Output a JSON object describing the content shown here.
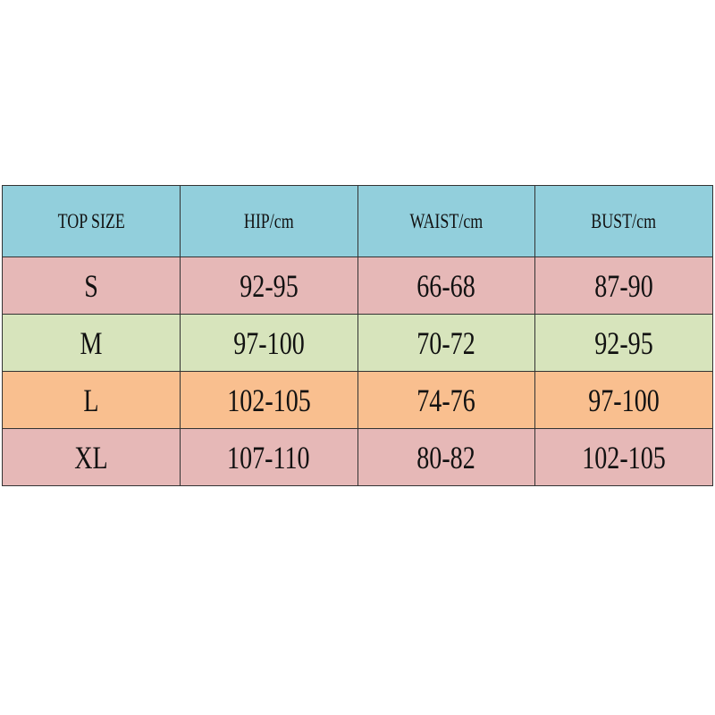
{
  "table": {
    "header": [
      "TOP SIZE",
      "HIP/cm",
      "WAIST/cm",
      "BUST/cm"
    ],
    "rows": [
      [
        "S",
        "92-95",
        "66-68",
        "87-90"
      ],
      [
        "M",
        "97-100",
        "70-72",
        "92-95"
      ],
      [
        "L",
        "102-105",
        "74-76",
        "97-100"
      ],
      [
        "XL",
        "107-110",
        "80-82",
        "102-105"
      ]
    ]
  }
}
